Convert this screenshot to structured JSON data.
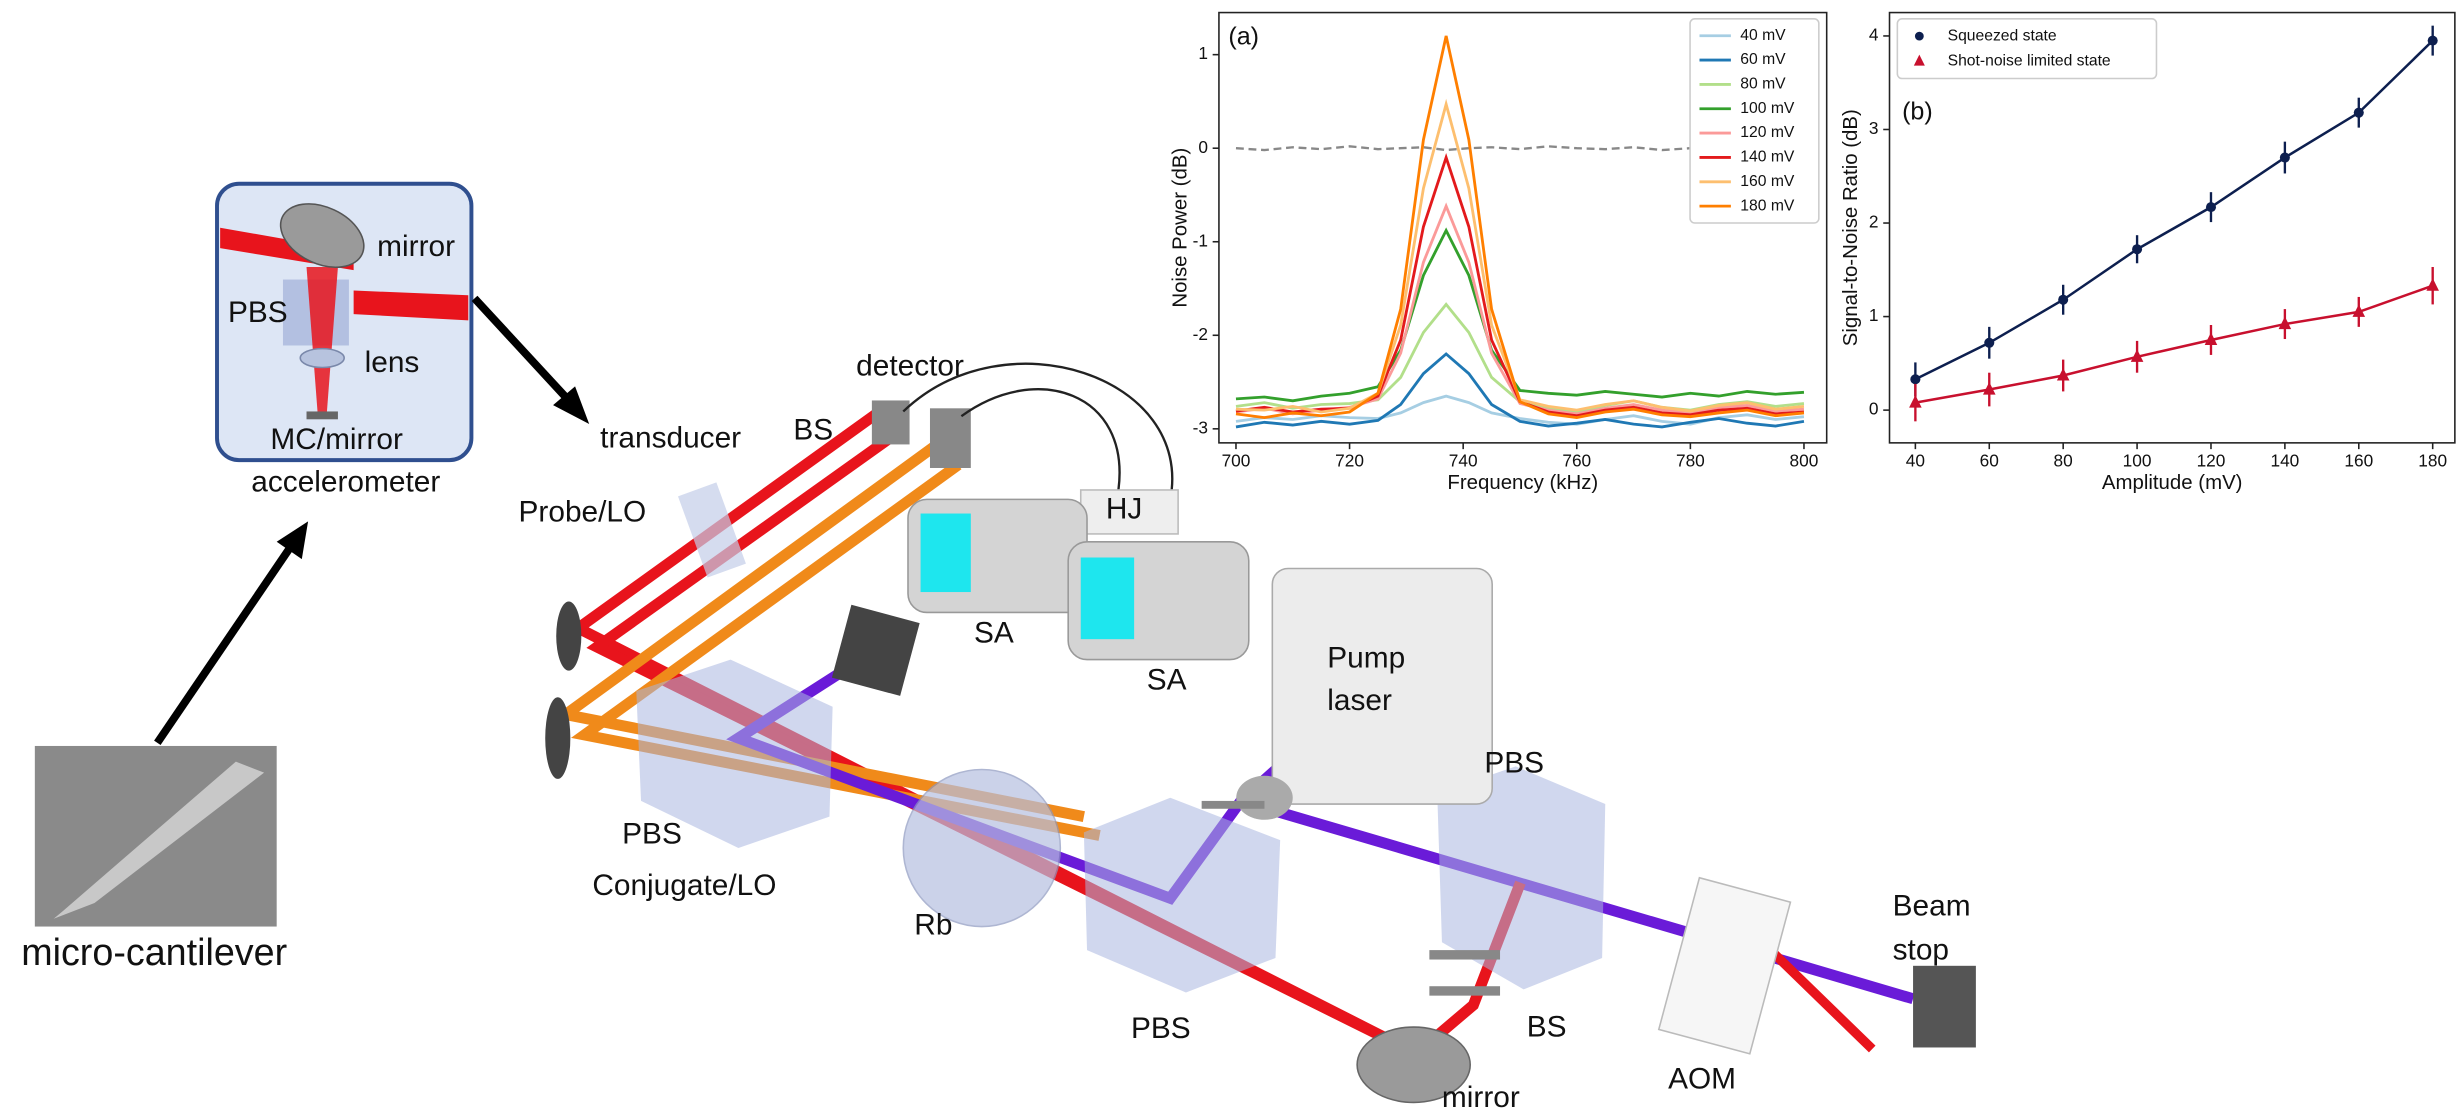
{
  "diagram": {
    "labels": [
      "mirror",
      "PBS",
      "lens",
      "MC/mirror",
      "accelerometer",
      "micro-cantilever",
      "transducer",
      "BS",
      "detector",
      "Probe/LO",
      "HJ",
      "SA",
      "SA",
      "Pump",
      "laser",
      "PBS",
      "PBS",
      "Conjugate/LO",
      "Rb",
      "PBS",
      "BS",
      "mirror",
      "AOM",
      "Beam",
      "stop"
    ]
  },
  "chart_data": [
    {
      "type": "line",
      "label": "(a)",
      "xlabel": "Frequency (kHz)",
      "ylabel": "Noise Power (dB)",
      "x": [
        700,
        705,
        710,
        715,
        720,
        725,
        729,
        733,
        737,
        741,
        745,
        750,
        755,
        760,
        765,
        770,
        775,
        780,
        785,
        790,
        795,
        800
      ],
      "xlim": [
        697,
        804
      ],
      "ylim": [
        -3.15,
        1.45
      ],
      "xticks": [
        700,
        720,
        740,
        760,
        780,
        800
      ],
      "yticks": [
        -3,
        -2,
        -1,
        0,
        1
      ],
      "legend": "upper right",
      "series": [
        {
          "name": "40 mV",
          "color": "#a6cee3",
          "values": [
            -2.92,
            -2.88,
            -2.9,
            -2.86,
            -2.88,
            -2.89,
            -2.83,
            -2.72,
            -2.65,
            -2.72,
            -2.83,
            -2.89,
            -2.93,
            -2.95,
            -2.9,
            -2.86,
            -2.92,
            -2.95,
            -2.88,
            -2.85,
            -2.9,
            -2.87
          ]
        },
        {
          "name": "60 mV",
          "color": "#1f78b4",
          "values": [
            -2.98,
            -2.93,
            -2.96,
            -2.92,
            -2.95,
            -2.91,
            -2.74,
            -2.41,
            -2.2,
            -2.41,
            -2.74,
            -2.92,
            -2.97,
            -2.94,
            -2.9,
            -2.95,
            -2.98,
            -2.93,
            -2.89,
            -2.94,
            -2.97,
            -2.92
          ]
        },
        {
          "name": "80 mV",
          "color": "#b2df8a",
          "values": [
            -2.76,
            -2.72,
            -2.78,
            -2.74,
            -2.73,
            -2.69,
            -2.45,
            -1.97,
            -1.67,
            -1.97,
            -2.45,
            -2.71,
            -2.78,
            -2.82,
            -2.75,
            -2.7,
            -2.77,
            -2.8,
            -2.74,
            -2.71,
            -2.76,
            -2.73
          ]
        },
        {
          "name": "100 mV",
          "color": "#33a02c",
          "values": [
            -2.68,
            -2.66,
            -2.7,
            -2.65,
            -2.62,
            -2.55,
            -2.16,
            -1.36,
            -0.88,
            -1.36,
            -2.16,
            -2.59,
            -2.62,
            -2.64,
            -2.6,
            -2.63,
            -2.66,
            -2.62,
            -2.65,
            -2.6,
            -2.63,
            -2.61
          ]
        },
        {
          "name": "120 mV",
          "color": "#fb9a99",
          "values": [
            -2.82,
            -2.78,
            -2.84,
            -2.8,
            -2.77,
            -2.68,
            -2.19,
            -1.22,
            -0.62,
            -1.22,
            -2.19,
            -2.73,
            -2.8,
            -2.84,
            -2.78,
            -2.74,
            -2.8,
            -2.83,
            -2.77,
            -2.75,
            -2.81,
            -2.79
          ]
        },
        {
          "name": "140 mV",
          "color": "#e31a1c",
          "values": [
            -2.81,
            -2.77,
            -2.82,
            -2.79,
            -2.78,
            -2.65,
            -2.05,
            -0.84,
            -0.1,
            -0.84,
            -2.05,
            -2.71,
            -2.82,
            -2.86,
            -2.8,
            -2.77,
            -2.83,
            -2.85,
            -2.8,
            -2.78,
            -2.84,
            -2.82
          ]
        },
        {
          "name": "160 mV",
          "color": "#fdbf6f",
          "values": [
            -2.79,
            -2.8,
            -2.76,
            -2.82,
            -2.78,
            -2.62,
            -1.89,
            -0.43,
            0.47,
            -0.43,
            -1.89,
            -2.69,
            -2.76,
            -2.8,
            -2.74,
            -2.7,
            -2.77,
            -2.81,
            -2.75,
            -2.72,
            -2.79,
            -2.76
          ]
        },
        {
          "name": "180 mV",
          "color": "#ff7f00",
          "values": [
            -2.84,
            -2.88,
            -2.83,
            -2.86,
            -2.82,
            -2.62,
            -1.72,
            0.09,
            1.2,
            0.09,
            -1.72,
            -2.71,
            -2.84,
            -2.88,
            -2.82,
            -2.79,
            -2.85,
            -2.87,
            -2.83,
            -2.8,
            -2.86,
            -2.83
          ]
        }
      ],
      "baseline": {
        "color": "#888888",
        "dashed": true,
        "values": [
          0.0,
          -0.02,
          0.01,
          -0.01,
          0.02,
          -0.01,
          0.0,
          0.01,
          -0.02,
          0.0,
          0.01,
          -0.01,
          0.02,
          0.0,
          -0.01,
          0.01,
          -0.02,
          0.0,
          0.01,
          -0.01,
          0.0,
          0.01
        ]
      }
    },
    {
      "type": "scatter",
      "label": "(b)",
      "xlabel": "Amplitude (mV)",
      "ylabel": "Signal-to-Noise Ratio (dB)",
      "x": [
        40,
        60,
        80,
        100,
        120,
        140,
        160,
        180
      ],
      "xlim": [
        33,
        186
      ],
      "ylim": [
        -0.35,
        4.25
      ],
      "xticks": [
        40,
        60,
        80,
        100,
        120,
        140,
        160,
        180
      ],
      "yticks": [
        0,
        1,
        2,
        3,
        4
      ],
      "legend": "upper left",
      "series": [
        {
          "name": "Squeezed state",
          "color": "#0d1f4f",
          "marker": "circle",
          "line": true,
          "values": [
            0.33,
            0.72,
            1.18,
            1.72,
            2.17,
            2.7,
            3.18,
            3.95
          ],
          "errors": [
            0.18,
            0.17,
            0.16,
            0.15,
            0.16,
            0.17,
            0.16,
            0.16
          ]
        },
        {
          "name": "Shot-noise limited state",
          "color": "#c8102e",
          "marker": "triangle",
          "line": true,
          "values": [
            0.08,
            0.22,
            0.37,
            0.57,
            0.75,
            0.92,
            1.05,
            1.33
          ],
          "errors": [
            0.2,
            0.18,
            0.17,
            0.17,
            0.16,
            0.16,
            0.16,
            0.2
          ]
        }
      ]
    }
  ]
}
